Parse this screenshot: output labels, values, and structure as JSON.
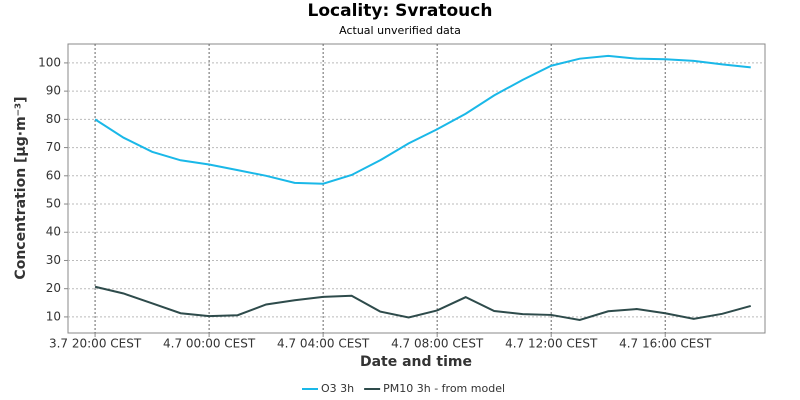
{
  "chart_data": {
    "type": "line",
    "title": "Locality: Svratouch",
    "subtitle": "Actual unverified data",
    "x_label": "Date and time",
    "y_label": "Concentration [µg·m⁻³]",
    "categories": [
      "3.7 20:00 CEST",
      null,
      null,
      null,
      "4.7 00:00 CEST",
      null,
      null,
      null,
      "4.7 04:00 CEST",
      null,
      null,
      null,
      "4.7 08:00 CEST",
      null,
      null,
      null,
      "4.7 12:00 CEST",
      null,
      null,
      null,
      "4.7 16:00 CEST",
      null,
      null,
      null
    ],
    "series": [
      {
        "name": "O3 3h",
        "color": "#1ab8e8",
        "values": [
          80,
          73.5,
          68.5,
          65.5,
          64,
          62,
          60,
          57.5,
          57.2,
          60.3,
          65.5,
          71.5,
          76.5,
          82,
          88.5,
          94,
          99,
          101.5,
          102.5,
          101.5,
          101.3,
          100.7,
          99.5,
          98.4
        ]
      },
      {
        "name": "PM10 3h - from model",
        "color": "#2e4b4b",
        "values": [
          20.7,
          18.3,
          14.8,
          11.3,
          10.3,
          10.6,
          14.4,
          15.9,
          17.1,
          17.5,
          11.9,
          9.8,
          12.3,
          17,
          12.1,
          11,
          10.7,
          8.9,
          12,
          12.8,
          11.3,
          9.3,
          11.1,
          13.9
        ]
      }
    ],
    "ylim": [
      4.3,
      106.7
    ],
    "yticks": [
      10,
      20,
      30,
      40,
      50,
      60,
      70,
      80,
      90,
      100
    ],
    "grid": true,
    "legend": "bottom"
  }
}
